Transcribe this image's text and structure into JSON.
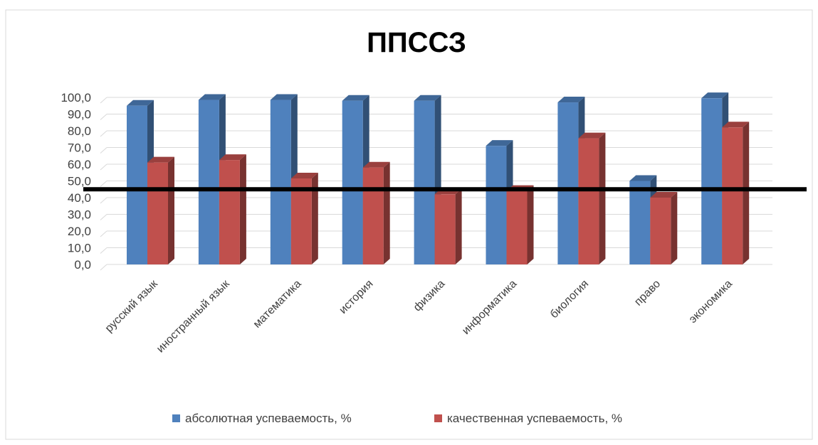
{
  "chart_data": {
    "type": "bar",
    "title": "ППССЗ",
    "categories": [
      "русский язык",
      "иностранный язык",
      "математика",
      "история",
      "физика",
      "информатика",
      "биология",
      "право",
      "экономика"
    ],
    "series": [
      {
        "name": "абсолютная успеваемость, %",
        "color": "#4F81BD",
        "values": [
          95.0,
          98.5,
          98.5,
          98.0,
          98.0,
          71.0,
          97.0,
          50.0,
          99.5
        ]
      },
      {
        "name": "качественная успеваемость, %",
        "color": "#C0504D",
        "values": [
          61.0,
          62.5,
          51.5,
          58.0,
          42.0,
          44.0,
          75.5,
          40.0,
          82.0
        ]
      }
    ],
    "reference_line": 45.0,
    "ylim": [
      0,
      100
    ],
    "ytick_step": 10,
    "ytick_labels": [
      "0,0",
      "10,0",
      "20,0",
      "30,0",
      "40,0",
      "50,0",
      "60,0",
      "70,0",
      "80,0",
      "90,0",
      "100,0"
    ],
    "grid": true,
    "legend": "bottom",
    "style": "3d-clustered-column"
  }
}
